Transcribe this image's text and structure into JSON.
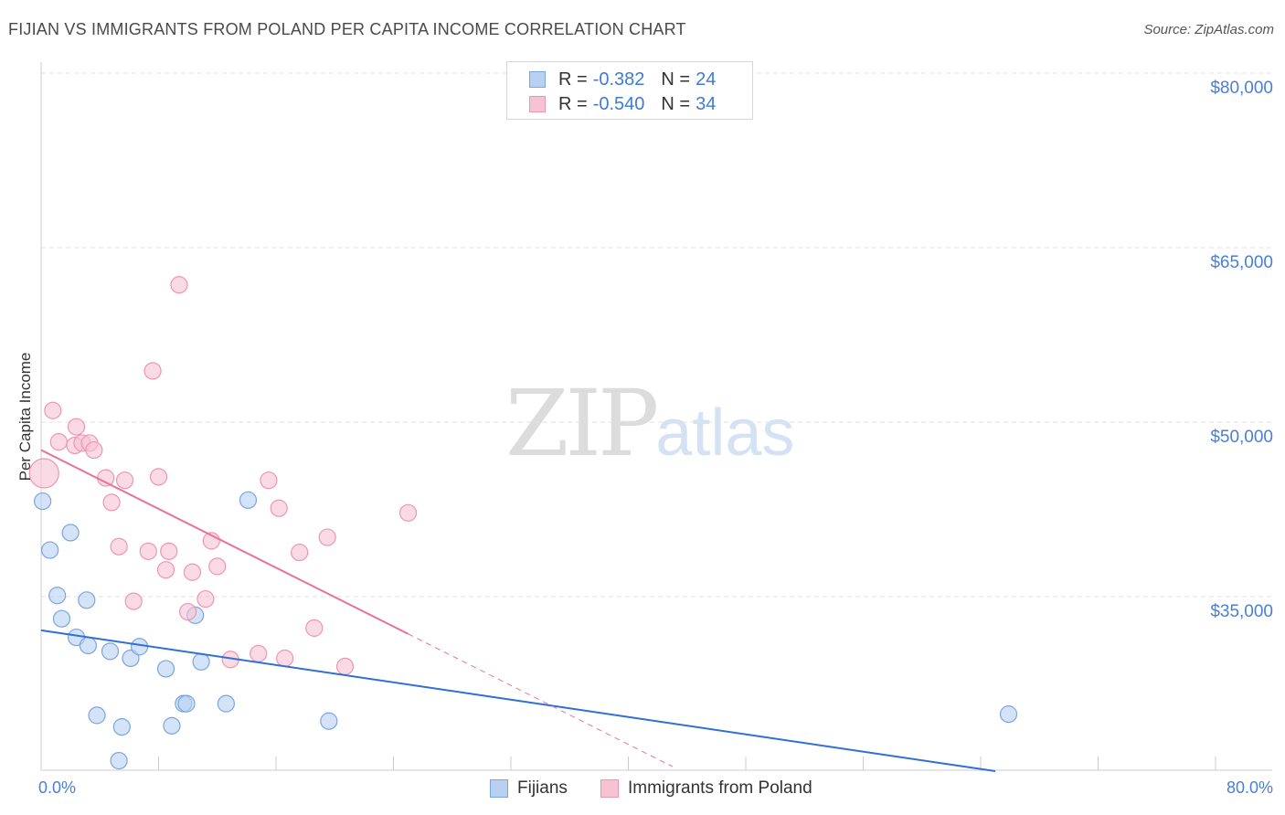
{
  "title": "FIJIAN VS IMMIGRANTS FROM POLAND PER CAPITA INCOME CORRELATION CHART",
  "source": "Source: ZipAtlas.com",
  "watermark": {
    "zip": "ZIP",
    "atlas": "atlas"
  },
  "legend_top": [
    {
      "r_label": "R =",
      "r_value": "-0.382",
      "n_label": "N =",
      "n_value": "24"
    },
    {
      "r_label": "R =",
      "r_value": "-0.540",
      "n_label": "N =",
      "n_value": "34"
    }
  ],
  "legend_bottom": [
    "Fijians",
    "Immigrants from Poland"
  ],
  "colors": {
    "fijian_fill": "#b8d0f2",
    "fijian_stroke": "#7aa5e0",
    "fijian_line": "#2f6fd6",
    "poland_fill": "#f7c3d3",
    "poland_stroke": "#ee95b3",
    "poland_line": "#e8729a",
    "tick_text": "#4a7fd6",
    "grid": "#e2e2e2"
  },
  "chart_data": {
    "type": "scatter",
    "title": "FIJIAN VS IMMIGRANTS FROM POLAND PER CAPITA INCOME CORRELATION CHART",
    "xlabel": "",
    "ylabel": "Per Capita Income",
    "xlim": [
      0,
      80
    ],
    "ylim": [
      20000,
      83000
    ],
    "x_tick_labels": [
      "0.0%",
      "80.0%"
    ],
    "y_ticks": [
      35000,
      50000,
      65000,
      80000
    ],
    "y_tick_labels": [
      "$35,000",
      "$50,000",
      "$65,000",
      "$80,000"
    ],
    "series": [
      {
        "name": "Fijians",
        "r": -0.382,
        "n": 24,
        "points": [
          [
            0.1,
            43200
          ],
          [
            0.6,
            39000
          ],
          [
            1.1,
            35100
          ],
          [
            1.4,
            33100
          ],
          [
            2.0,
            40500
          ],
          [
            2.4,
            31500
          ],
          [
            3.1,
            34700
          ],
          [
            3.2,
            30800
          ],
          [
            3.8,
            24800
          ],
          [
            4.7,
            30300
          ],
          [
            5.5,
            23800
          ],
          [
            5.3,
            20900
          ],
          [
            6.1,
            29700
          ],
          [
            6.7,
            30700
          ],
          [
            8.5,
            28800
          ],
          [
            8.9,
            23900
          ],
          [
            9.7,
            25800
          ],
          [
            9.9,
            25800
          ],
          [
            10.5,
            33400
          ],
          [
            10.9,
            29400
          ],
          [
            12.6,
            25800
          ],
          [
            14.1,
            43300
          ],
          [
            19.6,
            24300
          ],
          [
            65.9,
            24900
          ]
        ],
        "trend": {
          "x": [
            0,
            65
          ],
          "y": [
            32100,
            20000
          ]
        }
      },
      {
        "name": "Immigrants from Poland",
        "r": -0.54,
        "n": 34,
        "points": [
          [
            0.2,
            45600
          ],
          [
            0.8,
            51000
          ],
          [
            1.2,
            48300
          ],
          [
            2.3,
            48000
          ],
          [
            2.4,
            49600
          ],
          [
            2.8,
            48200
          ],
          [
            3.3,
            48200
          ],
          [
            3.6,
            47600
          ],
          [
            4.4,
            45200
          ],
          [
            4.8,
            43100
          ],
          [
            5.3,
            39300
          ],
          [
            5.7,
            45000
          ],
          [
            6.3,
            34600
          ],
          [
            7.3,
            38900
          ],
          [
            7.6,
            54400
          ],
          [
            8.0,
            45300
          ],
          [
            8.5,
            37300
          ],
          [
            8.7,
            38900
          ],
          [
            9.4,
            61800
          ],
          [
            10.0,
            33700
          ],
          [
            10.3,
            37100
          ],
          [
            11.2,
            34800
          ],
          [
            11.6,
            39800
          ],
          [
            12.0,
            37600
          ],
          [
            12.9,
            29600
          ],
          [
            14.8,
            30100
          ],
          [
            15.5,
            45000
          ],
          [
            16.2,
            42600
          ],
          [
            16.6,
            29700
          ],
          [
            17.6,
            38800
          ],
          [
            18.6,
            32300
          ],
          [
            19.5,
            40100
          ],
          [
            20.7,
            29000
          ],
          [
            25.0,
            42200
          ]
        ],
        "trend": {
          "x": [
            0,
            25
          ],
          "y": [
            47600,
            31800
          ]
        },
        "trend_extension": {
          "x": [
            25,
            43
          ],
          "y": [
            31800,
            20400
          ]
        }
      }
    ]
  }
}
